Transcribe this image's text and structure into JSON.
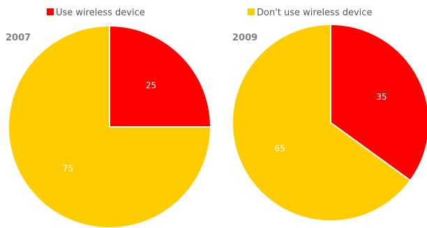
{
  "chart_data": {
    "type": "pie",
    "legend": {
      "placement": "top",
      "entries": [
        {
          "name": "Use wireless device",
          "color": "#ff0000"
        },
        {
          "name": "Don't use wireless device",
          "color": "#ffcc00"
        }
      ]
    },
    "charts": [
      {
        "title": "2007",
        "slices": [
          {
            "name": "Use wireless device",
            "value": 25,
            "label": "25",
            "color": "#ff0000"
          },
          {
            "name": "Don't use wireless device",
            "value": 75,
            "label": "75",
            "color": "#ffcc00"
          }
        ]
      },
      {
        "title": "2009",
        "slices": [
          {
            "name": "Use wireless device",
            "value": 35,
            "label": "35",
            "color": "#ff0000"
          },
          {
            "name": "Don't use wireless device",
            "value": 65,
            "label": "65",
            "color": "#ffcc00"
          }
        ]
      }
    ]
  }
}
